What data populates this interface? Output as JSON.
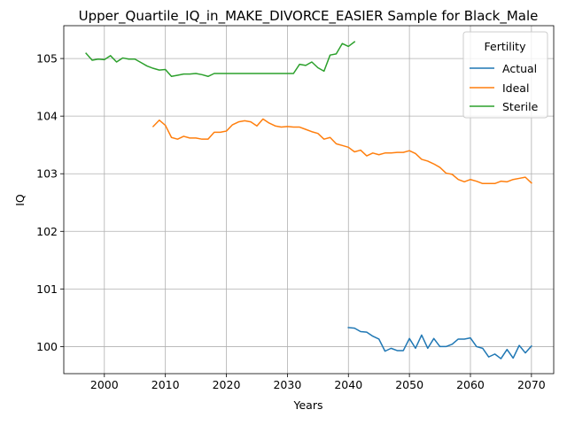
{
  "chart_data": {
    "type": "line",
    "title": "Upper_Quartile_IQ_in_MAKE_DIVORCE_EASIER Sample for Black_Male",
    "xlabel": "Years",
    "ylabel": "IQ",
    "xlim": [
      1993.35,
      2073.65
    ],
    "ylim": [
      99.53,
      105.57
    ],
    "xticks": [
      2000,
      2010,
      2020,
      2030,
      2040,
      2050,
      2060,
      2070
    ],
    "yticks": [
      100,
      101,
      102,
      103,
      104,
      105
    ],
    "grid": true,
    "legend": {
      "title": "Fertility",
      "placement": "upper right",
      "entries": [
        "Actual",
        "Ideal",
        "Sterile"
      ]
    },
    "series": [
      {
        "name": "Actual",
        "color": "#1f77b4",
        "x": [
          2040,
          2041,
          2042,
          2043,
          2044,
          2045,
          2046,
          2047,
          2048,
          2049,
          2050,
          2051,
          2052,
          2053,
          2054,
          2055,
          2056,
          2057,
          2058,
          2059,
          2060,
          2061,
          2062,
          2063,
          2064,
          2065,
          2066,
          2067,
          2068,
          2069,
          2070
        ],
        "y": [
          100.33,
          100.32,
          100.26,
          100.25,
          100.18,
          100.13,
          99.92,
          99.97,
          99.93,
          99.93,
          100.14,
          99.97,
          100.2,
          99.97,
          100.14,
          100.0,
          100.0,
          100.04,
          100.13,
          100.13,
          100.15,
          100.0,
          99.97,
          99.82,
          99.87,
          99.79,
          99.95,
          99.8,
          100.02,
          99.89,
          100.01
        ]
      },
      {
        "name": "Ideal",
        "color": "#ff7f0e",
        "x": [
          2008,
          2009,
          2010,
          2011,
          2012,
          2013,
          2014,
          2015,
          2016,
          2017,
          2018,
          2019,
          2020,
          2021,
          2022,
          2023,
          2024,
          2025,
          2026,
          2027,
          2028,
          2029,
          2030,
          2031,
          2032,
          2033,
          2034,
          2035,
          2036,
          2037,
          2038,
          2039,
          2040,
          2041,
          2042,
          2043,
          2044,
          2045,
          2046,
          2047,
          2048,
          2049,
          2050,
          2051,
          2052,
          2053,
          2054,
          2055,
          2056,
          2057,
          2058,
          2059,
          2060,
          2061,
          2062,
          2063,
          2064,
          2065,
          2066,
          2067,
          2068,
          2069,
          2070
        ],
        "y": [
          103.82,
          103.93,
          103.84,
          103.63,
          103.6,
          103.65,
          103.62,
          103.62,
          103.6,
          103.6,
          103.72,
          103.72,
          103.74,
          103.85,
          103.9,
          103.92,
          103.9,
          103.83,
          103.95,
          103.88,
          103.83,
          103.81,
          103.82,
          103.81,
          103.81,
          103.77,
          103.73,
          103.7,
          103.6,
          103.63,
          103.52,
          103.49,
          103.46,
          103.38,
          103.41,
          103.31,
          103.36,
          103.33,
          103.36,
          103.36,
          103.37,
          103.37,
          103.4,
          103.35,
          103.25,
          103.22,
          103.17,
          103.11,
          103.01,
          102.99,
          102.9,
          102.86,
          102.9,
          102.87,
          102.83,
          102.83,
          102.83,
          102.87,
          102.86,
          102.9,
          102.92,
          102.94,
          102.84
        ]
      },
      {
        "name": "Sterile",
        "color": "#2ca02c",
        "x": [
          1997,
          1998,
          1999,
          2000,
          2001,
          2002,
          2003,
          2004,
          2005,
          2006,
          2007,
          2008,
          2009,
          2010,
          2011,
          2012,
          2013,
          2014,
          2015,
          2016,
          2017,
          2018,
          2019,
          2020,
          2021,
          2022,
          2023,
          2024,
          2025,
          2026,
          2027,
          2028,
          2029,
          2030,
          2031,
          2032,
          2033,
          2034,
          2035,
          2036,
          2037,
          2038,
          2039,
          2040,
          2041
        ],
        "y": [
          105.09,
          104.97,
          104.99,
          104.98,
          105.05,
          104.94,
          105.01,
          104.99,
          104.99,
          104.93,
          104.87,
          104.83,
          104.8,
          104.81,
          104.69,
          104.71,
          104.73,
          104.73,
          104.74,
          104.72,
          104.69,
          104.74,
          104.74,
          104.74,
          104.74,
          104.74,
          104.74,
          104.74,
          104.74,
          104.74,
          104.74,
          104.74,
          104.74,
          104.74,
          104.74,
          104.9,
          104.88,
          104.94,
          104.84,
          104.78,
          105.06,
          105.08,
          105.26,
          105.21,
          105.29
        ]
      }
    ]
  }
}
